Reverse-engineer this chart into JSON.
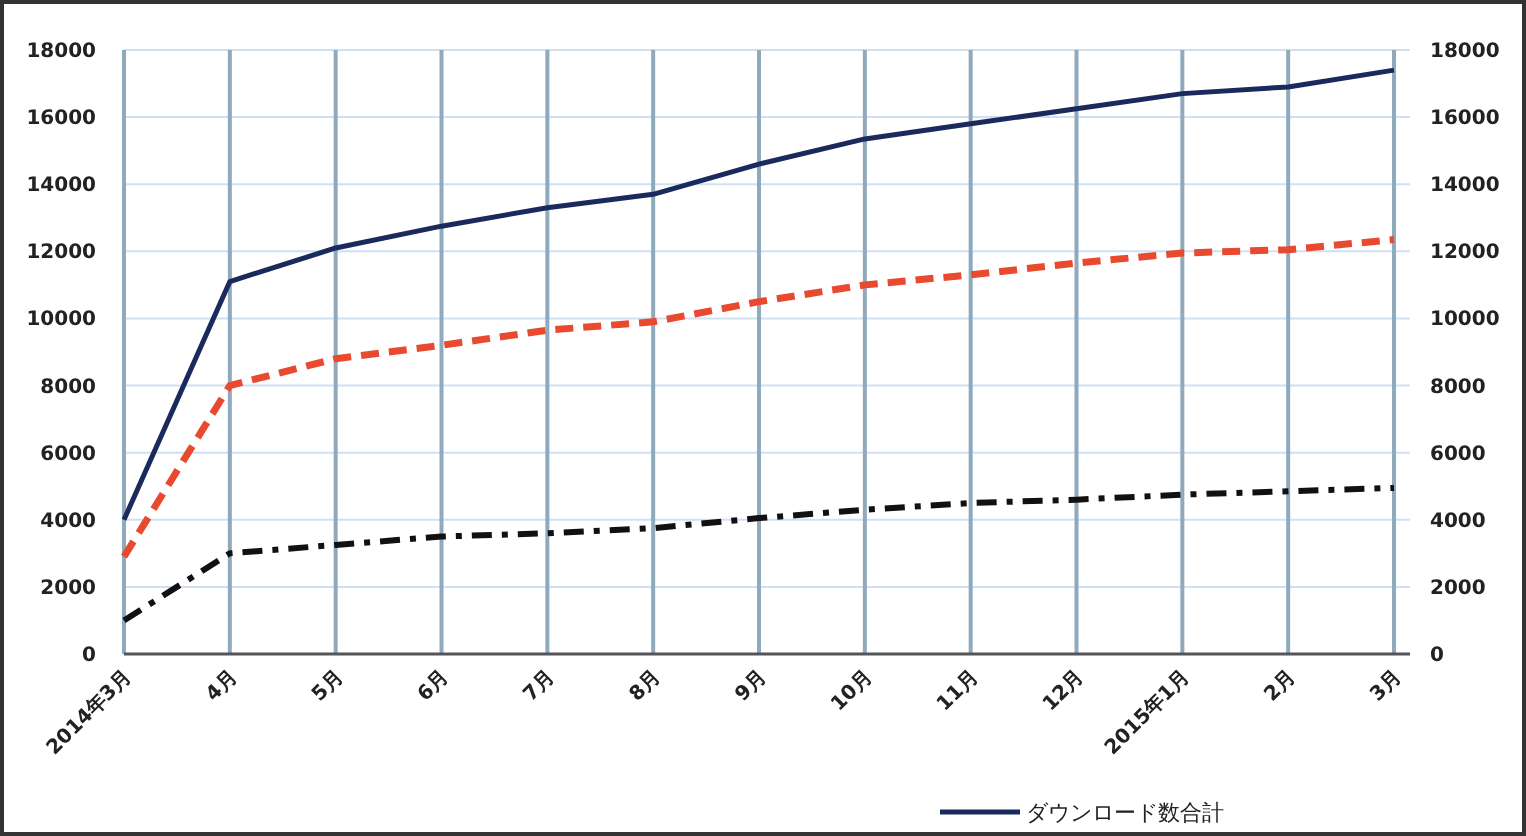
{
  "chart_data": {
    "type": "line",
    "categories": [
      "2014年3月",
      "4月",
      "5月",
      "6月",
      "7月",
      "8月",
      "9月",
      "10月",
      "11月",
      "12月",
      "2015年1月",
      "2月",
      "3月"
    ],
    "series": [
      {
        "color": "#e8492f",
        "line_style": "dashed",
        "values": [
          2900,
          8000,
          8800,
          9200,
          9650,
          9900,
          10500,
          11000,
          11300,
          11650,
          11950,
          12050,
          12350
        ]
      },
      {
        "color": "#111111",
        "line_style": "dashdot",
        "values": [
          1000,
          3000,
          3250,
          3500,
          3600,
          3750,
          4050,
          4300,
          4500,
          4600,
          4750,
          4850,
          4950
        ]
      },
      {
        "name": "ダウンロード数合計",
        "color": "#1b2a5c",
        "line_style": "solid",
        "values": [
          4000,
          11100,
          12100,
          12750,
          13300,
          13700,
          14600,
          15350,
          15800,
          16250,
          16700,
          16900,
          17400
        ]
      }
    ],
    "ylim": [
      0,
      18000
    ],
    "yticks": [
      0,
      2000,
      4000,
      6000,
      8000,
      10000,
      12000,
      14000,
      16000,
      18000
    ],
    "y2lim": [
      0,
      18000
    ],
    "y2ticks": [
      0,
      2000,
      4000,
      6000,
      8000,
      10000,
      12000,
      14000,
      16000,
      18000
    ],
    "grid": true,
    "legend": "bottom"
  }
}
